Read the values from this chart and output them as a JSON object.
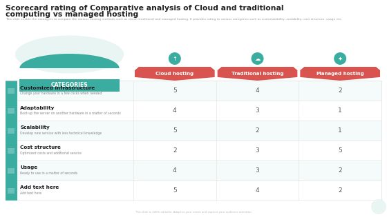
{
  "title_line1": "Scorecard rating of Comparative analysis of Cloud and traditional",
  "title_line2": "computing vs managed hosting",
  "subtitle": "This slide enable the managers to compare the various hosting methods such as cloud, traditional and managed hosting. It provides rating to various categories such as customizability, scalability, cost structure, usage etc.",
  "categories": [
    {
      "name": "Customized Infrastructure",
      "sub": "Change your hardware in a few clicks when needed"
    },
    {
      "name": "Adaptability",
      "sub": "Boot-up the server on another hardware in a matter of seconds"
    },
    {
      "name": "Scalability",
      "sub": "Develop new service with less technical knowledge"
    },
    {
      "name": "Cost structure",
      "sub": "Optimized costs and additional service"
    },
    {
      "name": "Usage",
      "sub": "Ready to use in a matter of seconds"
    },
    {
      "name": "Add text here",
      "sub": "Add text here"
    }
  ],
  "columns": [
    "Cloud hosting",
    "Traditional hosting",
    "Managed hosting"
  ],
  "data": [
    [
      5,
      4,
      2
    ],
    [
      4,
      3,
      1
    ],
    [
      5,
      2,
      1
    ],
    [
      2,
      3,
      5
    ],
    [
      4,
      3,
      2
    ],
    [
      5,
      4,
      2
    ]
  ],
  "header_color": "#d9534f",
  "teal_color": "#3aada0",
  "teal_light": "#e8f5f3",
  "row_bg_alt": "#f5fafa",
  "row_bg_white": "#ffffff",
  "row_border": "#e0e0e0",
  "title_color": "#222222",
  "subtitle_color": "#999999",
  "footer": "This slide is 100% editable. Adapt to your needs and capture your audience attention.",
  "categories_label": "CATEGORIES"
}
